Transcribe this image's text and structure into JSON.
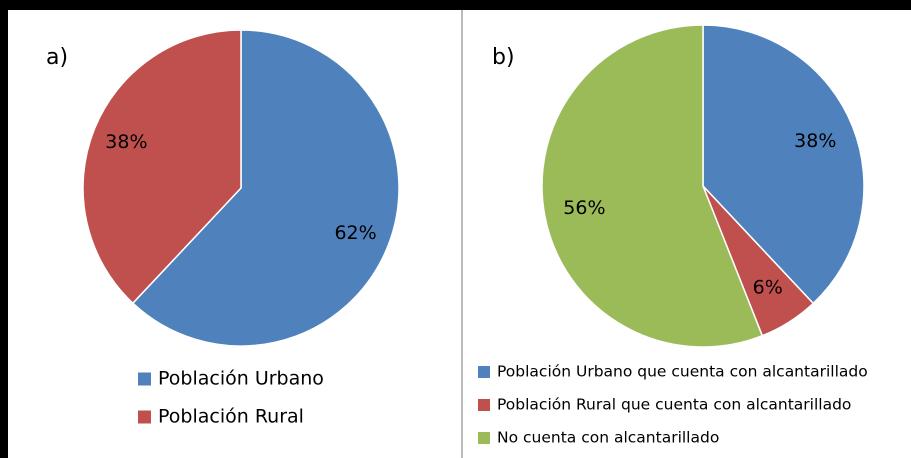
{
  "chart_data": [
    {
      "type": "pie",
      "title": "a)",
      "categories": [
        "Población Urbano",
        "Población Rural"
      ],
      "values": [
        62,
        38
      ],
      "value_labels": [
        "62%",
        "38%"
      ],
      "colors": [
        "#4f81bd",
        "#c0504d"
      ]
    },
    {
      "type": "pie",
      "title": "b)",
      "categories": [
        "Población Urbano que cuenta con alcantarillado",
        "Población Rural que cuenta con alcantarillado",
        "No cuenta con alcantarillado"
      ],
      "values": [
        38,
        6,
        56
      ],
      "value_labels": [
        "38%",
        "6%",
        "56%"
      ],
      "colors": [
        "#4f81bd",
        "#c0504d",
        "#9bbb59"
      ]
    }
  ]
}
